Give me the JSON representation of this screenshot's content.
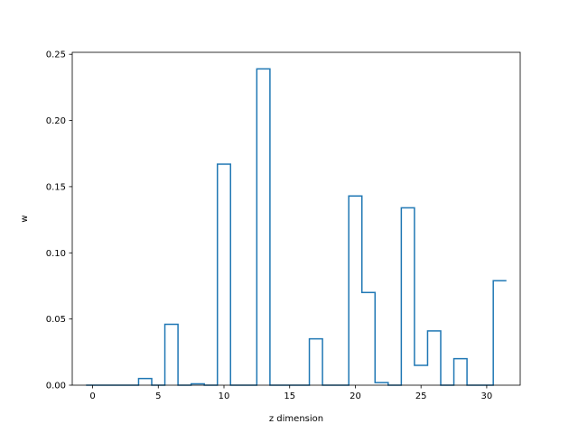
{
  "chart_data": {
    "type": "bar",
    "histtype": "step",
    "title": "",
    "xlabel": "z dimension",
    "ylabel": "w",
    "xlim": [
      -1.55,
      32.55
    ],
    "ylim": [
      0.0,
      0.2515
    ],
    "xticks": [
      0,
      5,
      10,
      15,
      20,
      25,
      30
    ],
    "xtick_labels": [
      "0",
      "5",
      "10",
      "15",
      "20",
      "25",
      "30"
    ],
    "yticks": [
      0.0,
      0.05,
      0.1,
      0.15,
      0.2,
      0.25
    ],
    "ytick_labels": [
      "0.00",
      "0.05",
      "0.10",
      "0.15",
      "0.20",
      "0.25"
    ],
    "grid": false,
    "line_color": "#1f77b4",
    "x": [
      0,
      1,
      2,
      3,
      4,
      5,
      6,
      7,
      8,
      9,
      10,
      11,
      12,
      13,
      14,
      15,
      16,
      17,
      18,
      19,
      20,
      21,
      22,
      23,
      24,
      25,
      26,
      27,
      28,
      29,
      30,
      31
    ],
    "values": [
      0.0,
      0.0,
      0.0,
      0.0,
      0.005,
      0.0,
      0.046,
      0.0,
      0.001,
      0.0,
      0.167,
      0.0,
      0.0,
      0.239,
      0.0,
      0.0,
      0.0,
      0.035,
      0.0,
      0.0,
      0.143,
      0.07,
      0.002,
      0.0,
      0.134,
      0.015,
      0.041,
      0.0,
      0.02,
      0.0,
      0.0,
      0.079
    ]
  }
}
